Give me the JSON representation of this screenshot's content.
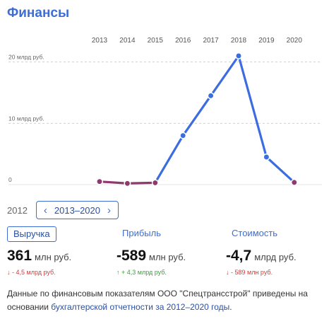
{
  "title": "Финансы",
  "chart_data": {
    "type": "line",
    "x": [
      "2013",
      "2014",
      "2015",
      "2016",
      "2017",
      "2018",
      "2019",
      "2020"
    ],
    "series": [
      {
        "values": [
          0.5,
          0.2,
          0.3,
          8,
          14.5,
          21,
          4.5,
          0.36
        ]
      }
    ],
    "yticks": [
      {
        "value": 20,
        "label": "20 млрд руб."
      },
      {
        "value": 10,
        "label": "10 млрд руб."
      },
      {
        "value": 0,
        "label": "0"
      }
    ],
    "ylim": [
      0,
      21
    ],
    "grid": true,
    "line_color": "#3b6de0",
    "negative_color": "#8e3a6e"
  },
  "period": {
    "previous": "2012",
    "current": "2013–2020",
    "prev_icon": "chevron-left-icon",
    "next_icon": "chevron-right-icon"
  },
  "metrics": [
    {
      "label": "Выручка",
      "value": "361",
      "unit": "млн руб.",
      "change": "↓ - 4,5 млрд руб.",
      "direction": "down",
      "active": true
    },
    {
      "label": "Прибыль",
      "value": "-589",
      "unit": "млн руб.",
      "change": "↑ + 4,3 млрд руб.",
      "direction": "up",
      "active": false
    },
    {
      "label": "Стоимость",
      "value": "-4,7",
      "unit": "млрд руб.",
      "change": "↓ - 589 млн руб.",
      "direction": "down",
      "active": false
    }
  ],
  "note": {
    "text": "Данные по финансовым показателям ООО \"Спецтрансстрой\" приведены на основании ",
    "link": "бухгалтерской отчетности за 2012–2020 годы",
    "end": "."
  },
  "colors": {
    "accent": "#3c6ed4",
    "down": "#d43a3a",
    "up": "#3f9b3f"
  }
}
